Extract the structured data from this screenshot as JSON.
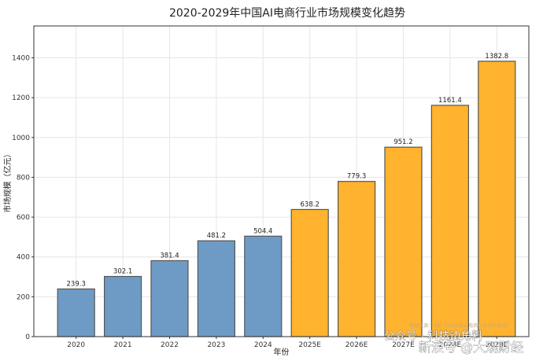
{
  "chart_data": {
    "type": "bar",
    "title": "2020-2029年中国AI电商行业市场规模变化趋势",
    "xlabel": "年份",
    "ylabel": "市场规模（亿元）",
    "categories": [
      "2020",
      "2021",
      "2022",
      "2023",
      "2024",
      "2025E",
      "2026E",
      "2027E",
      "2028E",
      "2029E"
    ],
    "values": [
      239.3,
      302.1,
      381.4,
      481.2,
      504.4,
      638.2,
      779.3,
      951.2,
      1161.4,
      1382.8
    ],
    "value_labels": [
      "239.3",
      "302.1",
      "381.4",
      "481.2",
      "504.4",
      "638.2",
      "779.3",
      "951.2",
      "1161.4",
      "1382.8"
    ],
    "yticks": [
      "0",
      "200",
      "400",
      "600",
      "800",
      "1000",
      "1200",
      "1400"
    ],
    "ylim": [
      0,
      1560
    ],
    "grid": true,
    "colors": {
      "historical": "#6e9bc5",
      "forecast": "#ffb32e",
      "edge": "#555555"
    },
    "forecast_start_index": 5
  },
  "watermark": {
    "source": "数据来源：头豹《2025年AI电商行业研究报告》",
    "account": "公众号 · 科技边角料",
    "brand": "新浪号 @大观财经"
  }
}
